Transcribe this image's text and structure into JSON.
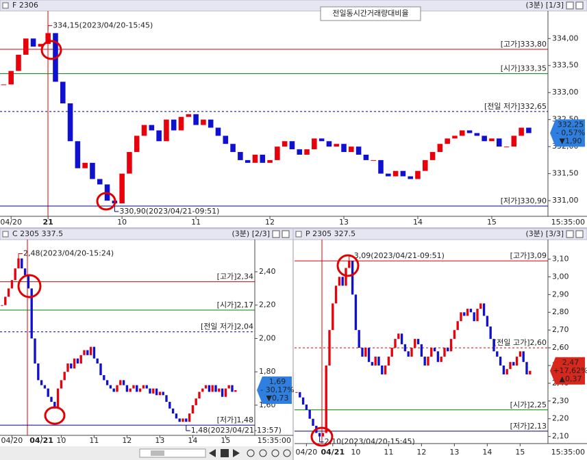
{
  "chart_data": [
    {
      "type": "candlestick",
      "title": "F 2306",
      "period": "(3분) [1/3]",
      "overlay_label": "전일동시간거래량대비율",
      "time_label": "15:35:00",
      "up_color": "#e8000b",
      "down_color": "#1010d0",
      "values": [
        333.15,
        333.4,
        333.7,
        334.0,
        333.85,
        333.9,
        334.1,
        333.2,
        332.8,
        332.1,
        331.6,
        331.7,
        331.4,
        331.3,
        331.0,
        330.95,
        331.5,
        331.9,
        332.2,
        332.4,
        332.3,
        332.1,
        332.5,
        332.3,
        332.55,
        332.6,
        332.4,
        332.5,
        332.35,
        332.2,
        332.05,
        331.9,
        331.75,
        331.7,
        331.85,
        331.7,
        331.75,
        332.0,
        332.1,
        331.95,
        331.85,
        331.95,
        332.15,
        332.1,
        332.0,
        332.05,
        331.9,
        332.0,
        331.85,
        331.75,
        331.75,
        331.5,
        331.45,
        331.55,
        331.45,
        331.4,
        331.55,
        331.75,
        331.9,
        332.05,
        332.15,
        332.2,
        332.3,
        332.25,
        332.2,
        332.1,
        332.15,
        332.0,
        332.0,
        332.2,
        332.35,
        332.25
      ],
      "ylim": [
        330.71,
        334.51
      ],
      "yticks": [
        {
          "value": 331,
          "label": "331,00"
        },
        {
          "value": 331.5,
          "label": "331,50"
        },
        {
          "value": 332,
          "label": "332,00"
        },
        {
          "value": 332.5,
          "label": "332,50"
        },
        {
          "value": 333,
          "label": "333,00"
        },
        {
          "value": 333.5,
          "label": "333,50"
        },
        {
          "value": 334,
          "label": "334,00"
        }
      ],
      "xlim": [
        -0.5,
        73.6
      ],
      "xticks": [
        {
          "value": 1,
          "label": "04/20"
        },
        {
          "value": 6,
          "label": "21"
        },
        {
          "value": 16,
          "label": "10"
        },
        {
          "value": 26,
          "label": "11"
        },
        {
          "value": 36,
          "label": "12"
        },
        {
          "value": 46,
          "label": "13"
        },
        {
          "value": 56,
          "label": "14"
        },
        {
          "value": 66,
          "label": "15"
        }
      ],
      "levels": [
        {
          "label": "[고가]333,80",
          "value": 333.8,
          "color": "#d00000",
          "style": "solid"
        },
        {
          "label": "[시가]333,35",
          "value": 333.35,
          "color": "#008000",
          "style": "solid"
        },
        {
          "label": "[전일 저가]332,65",
          "value": 332.65,
          "color": "#000080",
          "style": "dashed"
        },
        {
          "label": "[저가]330,90",
          "value": 330.9,
          "color": "#000080",
          "style": "solid"
        }
      ],
      "extremes": [
        {
          "label": "334,15(2023/04/20-15:45)",
          "value": 334.15,
          "x": 6,
          "color": "#d00000"
        },
        {
          "label": "330,90(2023/04/21-09:51)",
          "value": 330.9,
          "x": 15,
          "color": "#000080"
        }
      ],
      "last": {
        "price": "332,25",
        "change": "- 0,57%",
        "diff": "▼1,90",
        "color": "#2f7fe0"
      }
    },
    {
      "type": "candlestick",
      "title": "C 2305 337.5",
      "period": "(3분) [2/3]",
      "time_label": "15:35:00",
      "up_color": "#e8000b",
      "down_color": "#1010d0",
      "values": [
        2.2,
        2.25,
        2.3,
        2.35,
        2.42,
        2.48,
        2.42,
        2.38,
        2.3,
        2.0,
        1.85,
        1.75,
        1.72,
        1.7,
        1.65,
        1.62,
        1.58,
        1.7,
        1.75,
        1.8,
        1.85,
        1.82,
        1.88,
        1.85,
        1.9,
        1.93,
        1.9,
        1.95,
        1.88,
        1.85,
        1.78,
        1.75,
        1.72,
        1.7,
        1.68,
        1.72,
        1.75,
        1.72,
        1.68,
        1.7,
        1.72,
        1.68,
        1.7,
        1.72,
        1.7,
        1.67,
        1.7,
        1.66,
        1.68,
        1.66,
        1.62,
        1.58,
        1.55,
        1.52,
        1.5,
        1.52,
        1.5,
        1.55,
        1.6,
        1.64,
        1.68,
        1.7,
        1.72,
        1.68,
        1.72,
        1.68,
        1.7,
        1.65,
        1.7,
        1.72,
        1.68,
        1.69
      ],
      "ylim": [
        1.419,
        2.593
      ],
      "yticks": [
        {
          "value": 1.6,
          "label": "1,60"
        },
        {
          "value": 1.8,
          "label": "1,80"
        },
        {
          "value": 2,
          "label": "2,00"
        },
        {
          "value": 2.2,
          "label": "2,20"
        },
        {
          "value": 2.4,
          "label": "2,40"
        }
      ],
      "xlim": [
        -0.625,
        76.875
      ],
      "xticks": [
        {
          "value": 3,
          "label": "04/20"
        },
        {
          "value": 12,
          "label": "04/21"
        },
        {
          "value": 18,
          "label": "10"
        },
        {
          "value": 28,
          "label": "11"
        },
        {
          "value": 38,
          "label": "12"
        },
        {
          "value": 48,
          "label": "13"
        },
        {
          "value": 58,
          "label": "14"
        },
        {
          "value": 68,
          "label": "15"
        }
      ],
      "levels": [
        {
          "label": "[고가]2,34",
          "value": 2.34,
          "color": "#d00000",
          "style": "solid"
        },
        {
          "label": "[시가]2,17",
          "value": 2.17,
          "color": "#008000",
          "style": "solid"
        },
        {
          "label": "[전일 저가]2,04",
          "value": 2.04,
          "color": "#000080",
          "style": "dashed"
        },
        {
          "label": "[저가]1,48",
          "value": 1.48,
          "color": "#000080",
          "style": "solid"
        }
      ],
      "extremes": [
        {
          "label": "2,48(2023/04/20-15:24)",
          "value": 2.48,
          "x": 5,
          "color": "#d00000"
        },
        {
          "label": "1,48(2023/04/21-13:57)",
          "value": 1.48,
          "x": 56,
          "color": "#000080"
        }
      ],
      "last": {
        "price": "1,69",
        "change": "- 30,17%",
        "diff": "▼0,73",
        "color": "#2f7fe0"
      }
    },
    {
      "type": "candlestick",
      "title": "P 2305 327.5",
      "period": "(3분) [3/3]",
      "time_label": "15:35:00",
      "up_color": "#e8000b",
      "down_color": "#1010d0",
      "values": [
        2.35,
        2.32,
        2.28,
        2.25,
        2.2,
        2.16,
        2.12,
        2.1,
        2.12,
        2.5,
        2.7,
        2.85,
        2.95,
        3.0,
        2.95,
        3.05,
        3.09,
        2.9,
        2.7,
        2.6,
        2.55,
        2.6,
        2.52,
        2.5,
        2.55,
        2.5,
        2.45,
        2.5,
        2.55,
        2.6,
        2.65,
        2.68,
        2.62,
        2.58,
        2.55,
        2.6,
        2.65,
        2.62,
        2.55,
        2.5,
        2.55,
        2.6,
        2.58,
        2.52,
        2.55,
        2.6,
        2.58,
        2.65,
        2.7,
        2.75,
        2.8,
        2.78,
        2.82,
        2.8,
        2.75,
        2.82,
        2.85,
        2.78,
        2.72,
        2.65,
        2.58,
        2.55,
        2.5,
        2.45,
        2.48,
        2.52,
        2.5,
        2.55,
        2.58,
        2.52,
        2.45,
        2.47
      ],
      "ylim": [
        2.06,
        3.21
      ],
      "yticks": [
        {
          "value": 2.1,
          "label": "2,10"
        },
        {
          "value": 2.2,
          "label": "2,20"
        },
        {
          "value": 2.3,
          "label": "2,30"
        },
        {
          "value": 2.4,
          "label": "2,40"
        },
        {
          "value": 2.5,
          "label": "2,50"
        },
        {
          "value": 2.6,
          "label": "2,60"
        },
        {
          "value": 2.7,
          "label": "2,70"
        },
        {
          "value": 2.8,
          "label": "2,80"
        },
        {
          "value": 2.9,
          "label": "2,90"
        },
        {
          "value": 3,
          "label": "3,00"
        },
        {
          "value": 3.1,
          "label": "3,10"
        }
      ],
      "xlim": [
        -0.625,
        76.46
      ],
      "xticks": [
        {
          "value": 3,
          "label": "04/20"
        },
        {
          "value": 11,
          "label": "04/21"
        },
        {
          "value": 18,
          "label": "10"
        },
        {
          "value": 28,
          "label": "11"
        },
        {
          "value": 38,
          "label": "12"
        },
        {
          "value": 48,
          "label": "13"
        },
        {
          "value": 58,
          "label": "14"
        },
        {
          "value": 68,
          "label": "15"
        }
      ],
      "levels": [
        {
          "label": "[고가]3,09",
          "value": 3.09,
          "color": "#d00000",
          "style": "solid"
        },
        {
          "label": "[전일 고가]2,60",
          "value": 2.6,
          "color": "#d00000",
          "style": "dashed"
        },
        {
          "label": "[시가]2,25",
          "value": 2.25,
          "color": "#008000",
          "style": "solid"
        },
        {
          "label": "[저가]2,13",
          "value": 2.13,
          "color": "#000080",
          "style": "solid"
        }
      ],
      "extremes": [
        {
          "label": "3,09(2023/04/21-09:51)",
          "value": 3.09,
          "x": 16,
          "color": "#d00000"
        },
        {
          "label": "2,10(2023/04/20-15:45)",
          "value": 2.1,
          "x": 7,
          "color": "#000080"
        }
      ],
      "last": {
        "price": "2,47",
        "change": "+17,62%",
        "diff": "▲0,37",
        "color": "#d8281e"
      }
    }
  ]
}
